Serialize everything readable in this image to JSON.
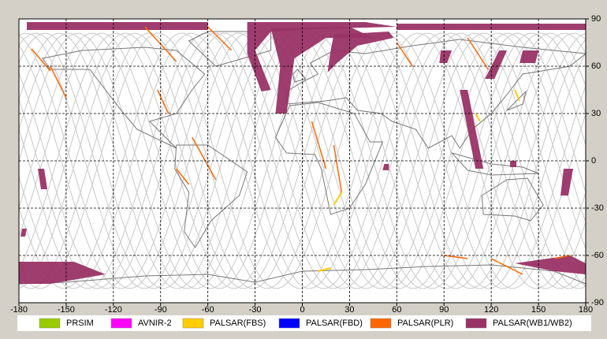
{
  "map": {
    "xlim": [
      -180,
      180
    ],
    "ylim": [
      -90,
      90
    ],
    "xticks": [
      -180,
      -150,
      -120,
      -90,
      -60,
      -30,
      0,
      30,
      60,
      90,
      120,
      150,
      180
    ],
    "yticks": [
      90,
      60,
      30,
      0,
      -30,
      -60,
      -90
    ],
    "legend": [
      {
        "label": "PRSIM",
        "color": "#99cc00"
      },
      {
        "label": "AVNIR-2",
        "color": "#ff00ff"
      },
      {
        "label": "PALSAR(FBS)",
        "color": "#ffcc00"
      },
      {
        "label": "PALSAR(FBD)",
        "color": "#0000ff"
      },
      {
        "label": "PALSAR(PLR)",
        "color": "#ff6600"
      },
      {
        "label": "PALSAR(WB1/WB2)",
        "color": "#993366"
      }
    ]
  }
}
